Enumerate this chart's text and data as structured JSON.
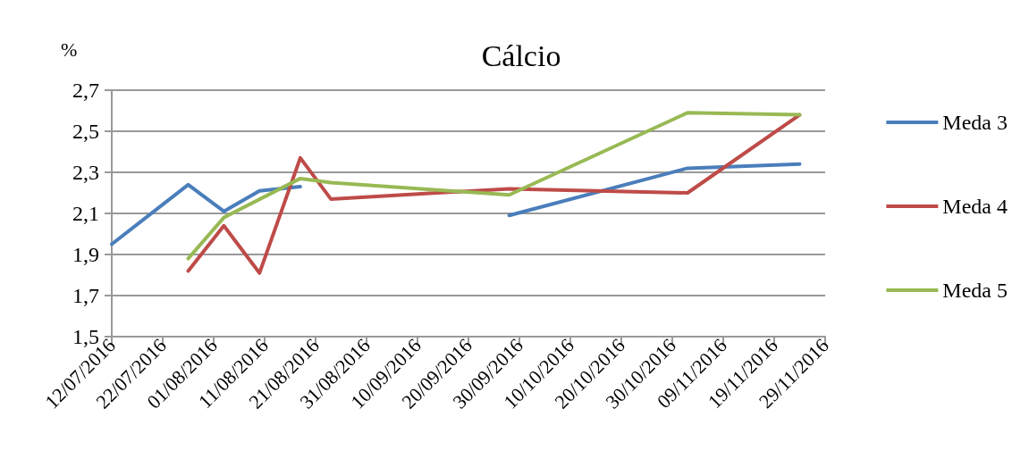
{
  "chart_data": {
    "type": "line",
    "title": "Cálcio",
    "ylabel": "%",
    "xlim": [
      "2016-07-12",
      "2016-11-29"
    ],
    "xticks": [
      {
        "value": "2016-07-12",
        "label": "12/07/2016"
      },
      {
        "value": "2016-07-22",
        "label": "22/07/2016"
      },
      {
        "value": "2016-08-01",
        "label": "01/08/2016"
      },
      {
        "value": "2016-08-11",
        "label": "11/08/2016"
      },
      {
        "value": "2016-08-21",
        "label": "21/08/2016"
      },
      {
        "value": "2016-08-31",
        "label": "31/08/2016"
      },
      {
        "value": "2016-09-10",
        "label": "10/09/2016"
      },
      {
        "value": "2016-09-20",
        "label": "20/09/2016"
      },
      {
        "value": "2016-09-30",
        "label": "30/09/2016"
      },
      {
        "value": "2016-10-10",
        "label": "10/10/2016"
      },
      {
        "value": "2016-10-20",
        "label": "20/10/2016"
      },
      {
        "value": "2016-10-30",
        "label": "30/10/2016"
      },
      {
        "value": "2016-11-09",
        "label": "09/11/2016"
      },
      {
        "value": "2016-11-19",
        "label": "19/11/2016"
      },
      {
        "value": "2016-11-29",
        "label": "29/11/2016"
      }
    ],
    "ylim": [
      1.5,
      2.7
    ],
    "yticks": [
      {
        "value": 1.5,
        "label": "1,5"
      },
      {
        "value": 1.7,
        "label": "1,7"
      },
      {
        "value": 1.9,
        "label": "1,9"
      },
      {
        "value": 2.1,
        "label": "2,1"
      },
      {
        "value": 2.3,
        "label": "2,3"
      },
      {
        "value": 2.5,
        "label": "2,5"
      },
      {
        "value": 2.7,
        "label": "2,7"
      }
    ],
    "grid": "y",
    "legend": "right",
    "marker": "none",
    "line_style": "solid",
    "series": [
      {
        "name": "Meda 3",
        "color": "#4a7ebb",
        "x": [
          "2016-07-12",
          "2016-07-27",
          "2016-08-03",
          "2016-08-10",
          "2016-08-18",
          "2016-08-24",
          "2016-09-28",
          "2016-11-02",
          "2016-11-24"
        ],
        "values": [
          1.95,
          2.24,
          2.11,
          2.21,
          2.23,
          null,
          2.09,
          2.32,
          2.34
        ]
      },
      {
        "name": "Meda 4",
        "color": "#be4b48",
        "x": [
          "2016-07-27",
          "2016-08-03",
          "2016-08-10",
          "2016-08-18",
          "2016-08-24",
          "2016-09-28",
          "2016-11-02",
          "2016-11-24"
        ],
        "values": [
          1.82,
          2.04,
          1.81,
          2.37,
          2.17,
          2.22,
          2.2,
          2.58
        ]
      },
      {
        "name": "Meda 5",
        "color": "#98b954",
        "x": [
          "2016-07-27",
          "2016-08-03",
          "2016-08-18",
          "2016-08-24",
          "2016-09-28",
          "2016-11-02",
          "2016-11-24"
        ],
        "values": [
          1.88,
          2.08,
          2.27,
          2.25,
          2.19,
          2.59,
          2.58
        ]
      }
    ]
  }
}
